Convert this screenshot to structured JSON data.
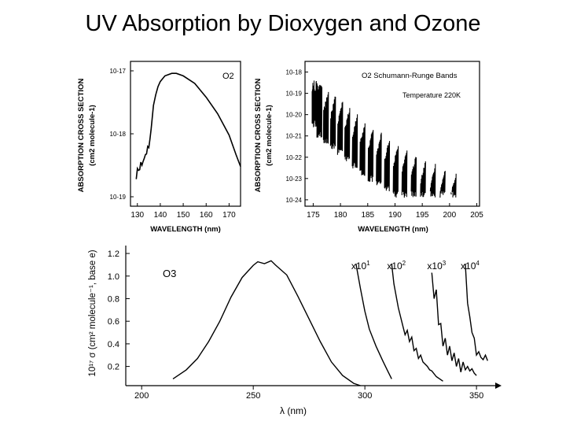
{
  "title": "UV Absorption by Dioxygen and Ozone",
  "chart_data": [
    {
      "type": "line",
      "title": "",
      "annotation": "O2",
      "xlabel": "WAVELENGTH (nm)",
      "ylabel_line1": "ABSORPTION CROSS SECTION",
      "ylabel_line2": "(cm2 molecule-1)",
      "x_ticks": [
        "130",
        "140",
        "150",
        "160",
        "170"
      ],
      "y_ticks": [
        "10-17",
        "10-18",
        "10-19"
      ],
      "xlim": [
        127,
        175
      ],
      "ylim_log10": [
        -19.15,
        -16.85
      ],
      "y_scale": "log",
      "x": [
        129.5,
        130,
        130.5,
        131,
        131.5,
        132,
        132.5,
        133,
        133.5,
        134,
        134.5,
        135,
        135.5,
        136,
        137,
        138,
        139,
        140,
        142,
        145,
        147,
        150,
        155,
        160,
        165,
        170,
        173,
        175
      ],
      "y_log10": [
        -18.72,
        -18.55,
        -18.58,
        -18.57,
        -18.45,
        -18.5,
        -18.44,
        -18.39,
        -18.33,
        -18.32,
        -18.2,
        -18.22,
        -18.08,
        -17.92,
        -17.55,
        -17.38,
        -17.25,
        -17.17,
        -17.08,
        -17.04,
        -17.04,
        -17.08,
        -17.2,
        -17.42,
        -17.68,
        -18.02,
        -18.33,
        -18.52
      ]
    },
    {
      "type": "line",
      "title": "O2 Schumann-Runge Bands",
      "annotation": "Temperature 220K",
      "xlabel": "WAVELENGTH (nm)",
      "ylabel_line1": "ABSORPTION CROSS SECTION",
      "ylabel_line2": "(cm2 molecule-1)",
      "x_ticks": [
        "175",
        "180",
        "185",
        "190",
        "195",
        "200",
        "205"
      ],
      "y_ticks": [
        "10-18",
        "10-19",
        "10-20",
        "10-21",
        "10-22",
        "10-23",
        "10-24"
      ],
      "xlim": [
        173.5,
        205.5
      ],
      "ylim_log10": [
        -24.3,
        -17.5
      ],
      "y_scale": "log",
      "band_heads_nm": [
        176.6,
        177.8,
        179.1,
        180.4,
        181.7,
        183.1,
        184.5,
        186.0,
        187.5,
        189.0,
        190.6,
        192.2,
        193.9,
        195.6,
        197.4,
        199.2,
        201.2
      ],
      "envelope_log10": [
        [
          175,
          -19.2
        ],
        [
          180,
          -20.2
        ],
        [
          185,
          -21.4
        ],
        [
          190,
          -22.2
        ],
        [
          195,
          -23.0
        ],
        [
          200,
          -23.6
        ],
        [
          204,
          -23.8
        ]
      ]
    },
    {
      "type": "line",
      "title": "",
      "annotation": "O3",
      "xlabel": "λ (nm)",
      "ylabel": "10¹⁷ σ (cm² molecule⁻¹, base e)",
      "x_ticks": [
        "200",
        "250",
        "300",
        "350"
      ],
      "y_ticks": [
        "0.2",
        "0.4",
        "0.6",
        "0.8",
        "1.0",
        "1.2"
      ],
      "xlim": [
        195,
        357
      ],
      "ylim": [
        0.03,
        1.27
      ],
      "series": [
        {
          "name": "x1",
          "x": [
            214,
            220,
            225,
            230,
            235,
            240,
            245,
            250,
            252,
            255,
            258,
            260,
            265,
            270,
            275,
            280,
            285,
            290,
            295,
            298
          ],
          "y": [
            0.09,
            0.17,
            0.27,
            0.42,
            0.6,
            0.82,
            0.99,
            1.1,
            1.13,
            1.12,
            1.13,
            1.1,
            1.0,
            0.82,
            0.62,
            0.42,
            0.24,
            0.12,
            0.05,
            0.03
          ]
        },
        {
          "name": "x10",
          "label": "x10",
          "exp": "1",
          "x": [
            296,
            298,
            300,
            302,
            305,
            308,
            310,
            312
          ],
          "y": [
            1.11,
            0.89,
            0.69,
            0.53,
            0.38,
            0.25,
            0.17,
            0.09
          ]
        },
        {
          "name": "x100",
          "label": "x10",
          "exp": "2",
          "x": [
            312,
            313,
            315,
            317,
            318,
            319,
            320,
            321,
            322,
            323,
            324,
            325,
            326,
            328,
            329,
            330,
            332,
            335
          ],
          "y": [
            1.11,
            0.93,
            0.72,
            0.56,
            0.48,
            0.52,
            0.42,
            0.46,
            0.34,
            0.36,
            0.27,
            0.3,
            0.24,
            0.2,
            0.17,
            0.16,
            0.11,
            0.07
          ]
        },
        {
          "name": "x1000",
          "label": "x10",
          "exp": "3",
          "x": [
            330,
            331,
            332,
            333,
            334,
            335,
            336,
            337,
            338,
            339,
            340,
            341,
            342,
            343,
            344,
            345,
            346,
            347,
            348,
            349,
            350
          ],
          "y": [
            1.03,
            0.8,
            0.88,
            0.57,
            0.58,
            0.38,
            0.45,
            0.3,
            0.38,
            0.25,
            0.32,
            0.2,
            0.27,
            0.15,
            0.24,
            0.17,
            0.2,
            0.16,
            0.18,
            0.14,
            0.12
          ]
        },
        {
          "name": "x10000",
          "label": "x10",
          "exp": "4",
          "x": [
            345,
            346,
            347,
            348,
            349,
            350,
            351,
            352,
            353,
            354,
            355
          ],
          "y": [
            1.11,
            0.76,
            0.64,
            0.5,
            0.45,
            0.3,
            0.33,
            0.28,
            0.26,
            0.3,
            0.25
          ]
        }
      ]
    }
  ]
}
